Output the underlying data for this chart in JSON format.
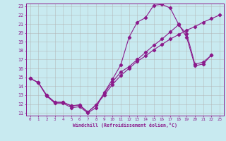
{
  "xlabel": "Windchill (Refroidissement éolien,°C)",
  "bg_color": "#c8eaf0",
  "line_color": "#8b1a8b",
  "grid_color": "#b0b0b0",
  "xlim": [
    0,
    23
  ],
  "ylim": [
    11,
    23
  ],
  "xticks": [
    0,
    1,
    2,
    3,
    4,
    5,
    6,
    7,
    8,
    9,
    10,
    11,
    12,
    13,
    14,
    15,
    16,
    17,
    18,
    19,
    20,
    21,
    22,
    23
  ],
  "yticks": [
    11,
    12,
    13,
    14,
    15,
    16,
    17,
    18,
    19,
    20,
    21,
    22,
    23
  ],
  "curve1_x": [
    0,
    1,
    2,
    3,
    4,
    5,
    6,
    7,
    8,
    9,
    10,
    11,
    12,
    13,
    14,
    15,
    16,
    17,
    18,
    19,
    20,
    21,
    22
  ],
  "curve1_y": [
    14.9,
    14.4,
    12.9,
    12.1,
    12.1,
    11.6,
    11.7,
    11.0,
    11.6,
    13.3,
    14.8,
    16.4,
    19.5,
    21.2,
    21.7,
    23.1,
    23.2,
    22.8,
    21.0,
    19.5,
    16.3,
    16.5,
    17.5
  ],
  "curve2_x": [
    0,
    1,
    2,
    3,
    4,
    5,
    6,
    7,
    8,
    9,
    10,
    11,
    12,
    13,
    14,
    15,
    16,
    17,
    18,
    19,
    20,
    21,
    22,
    23
  ],
  "curve2_y": [
    14.9,
    14.4,
    13.0,
    12.2,
    12.2,
    11.8,
    11.9,
    11.1,
    11.9,
    13.0,
    14.2,
    15.2,
    16.0,
    16.8,
    17.4,
    18.1,
    18.7,
    19.3,
    19.8,
    20.3,
    20.7,
    21.2,
    21.6,
    22.0
  ],
  "curve3_x": [
    0,
    1,
    2,
    3,
    4,
    5,
    6,
    7,
    8,
    9,
    10,
    11,
    12,
    13,
    14,
    15,
    16,
    17,
    18,
    19,
    20,
    21,
    22,
    23
  ],
  "curve3_y": [
    14.9,
    14.4,
    13.0,
    12.2,
    12.2,
    11.8,
    11.9,
    11.1,
    11.9,
    13.2,
    14.5,
    15.6,
    16.2,
    17.0,
    17.8,
    18.6,
    19.3,
    20.1,
    20.9,
    19.9,
    16.5,
    16.7,
    17.5,
    null
  ]
}
